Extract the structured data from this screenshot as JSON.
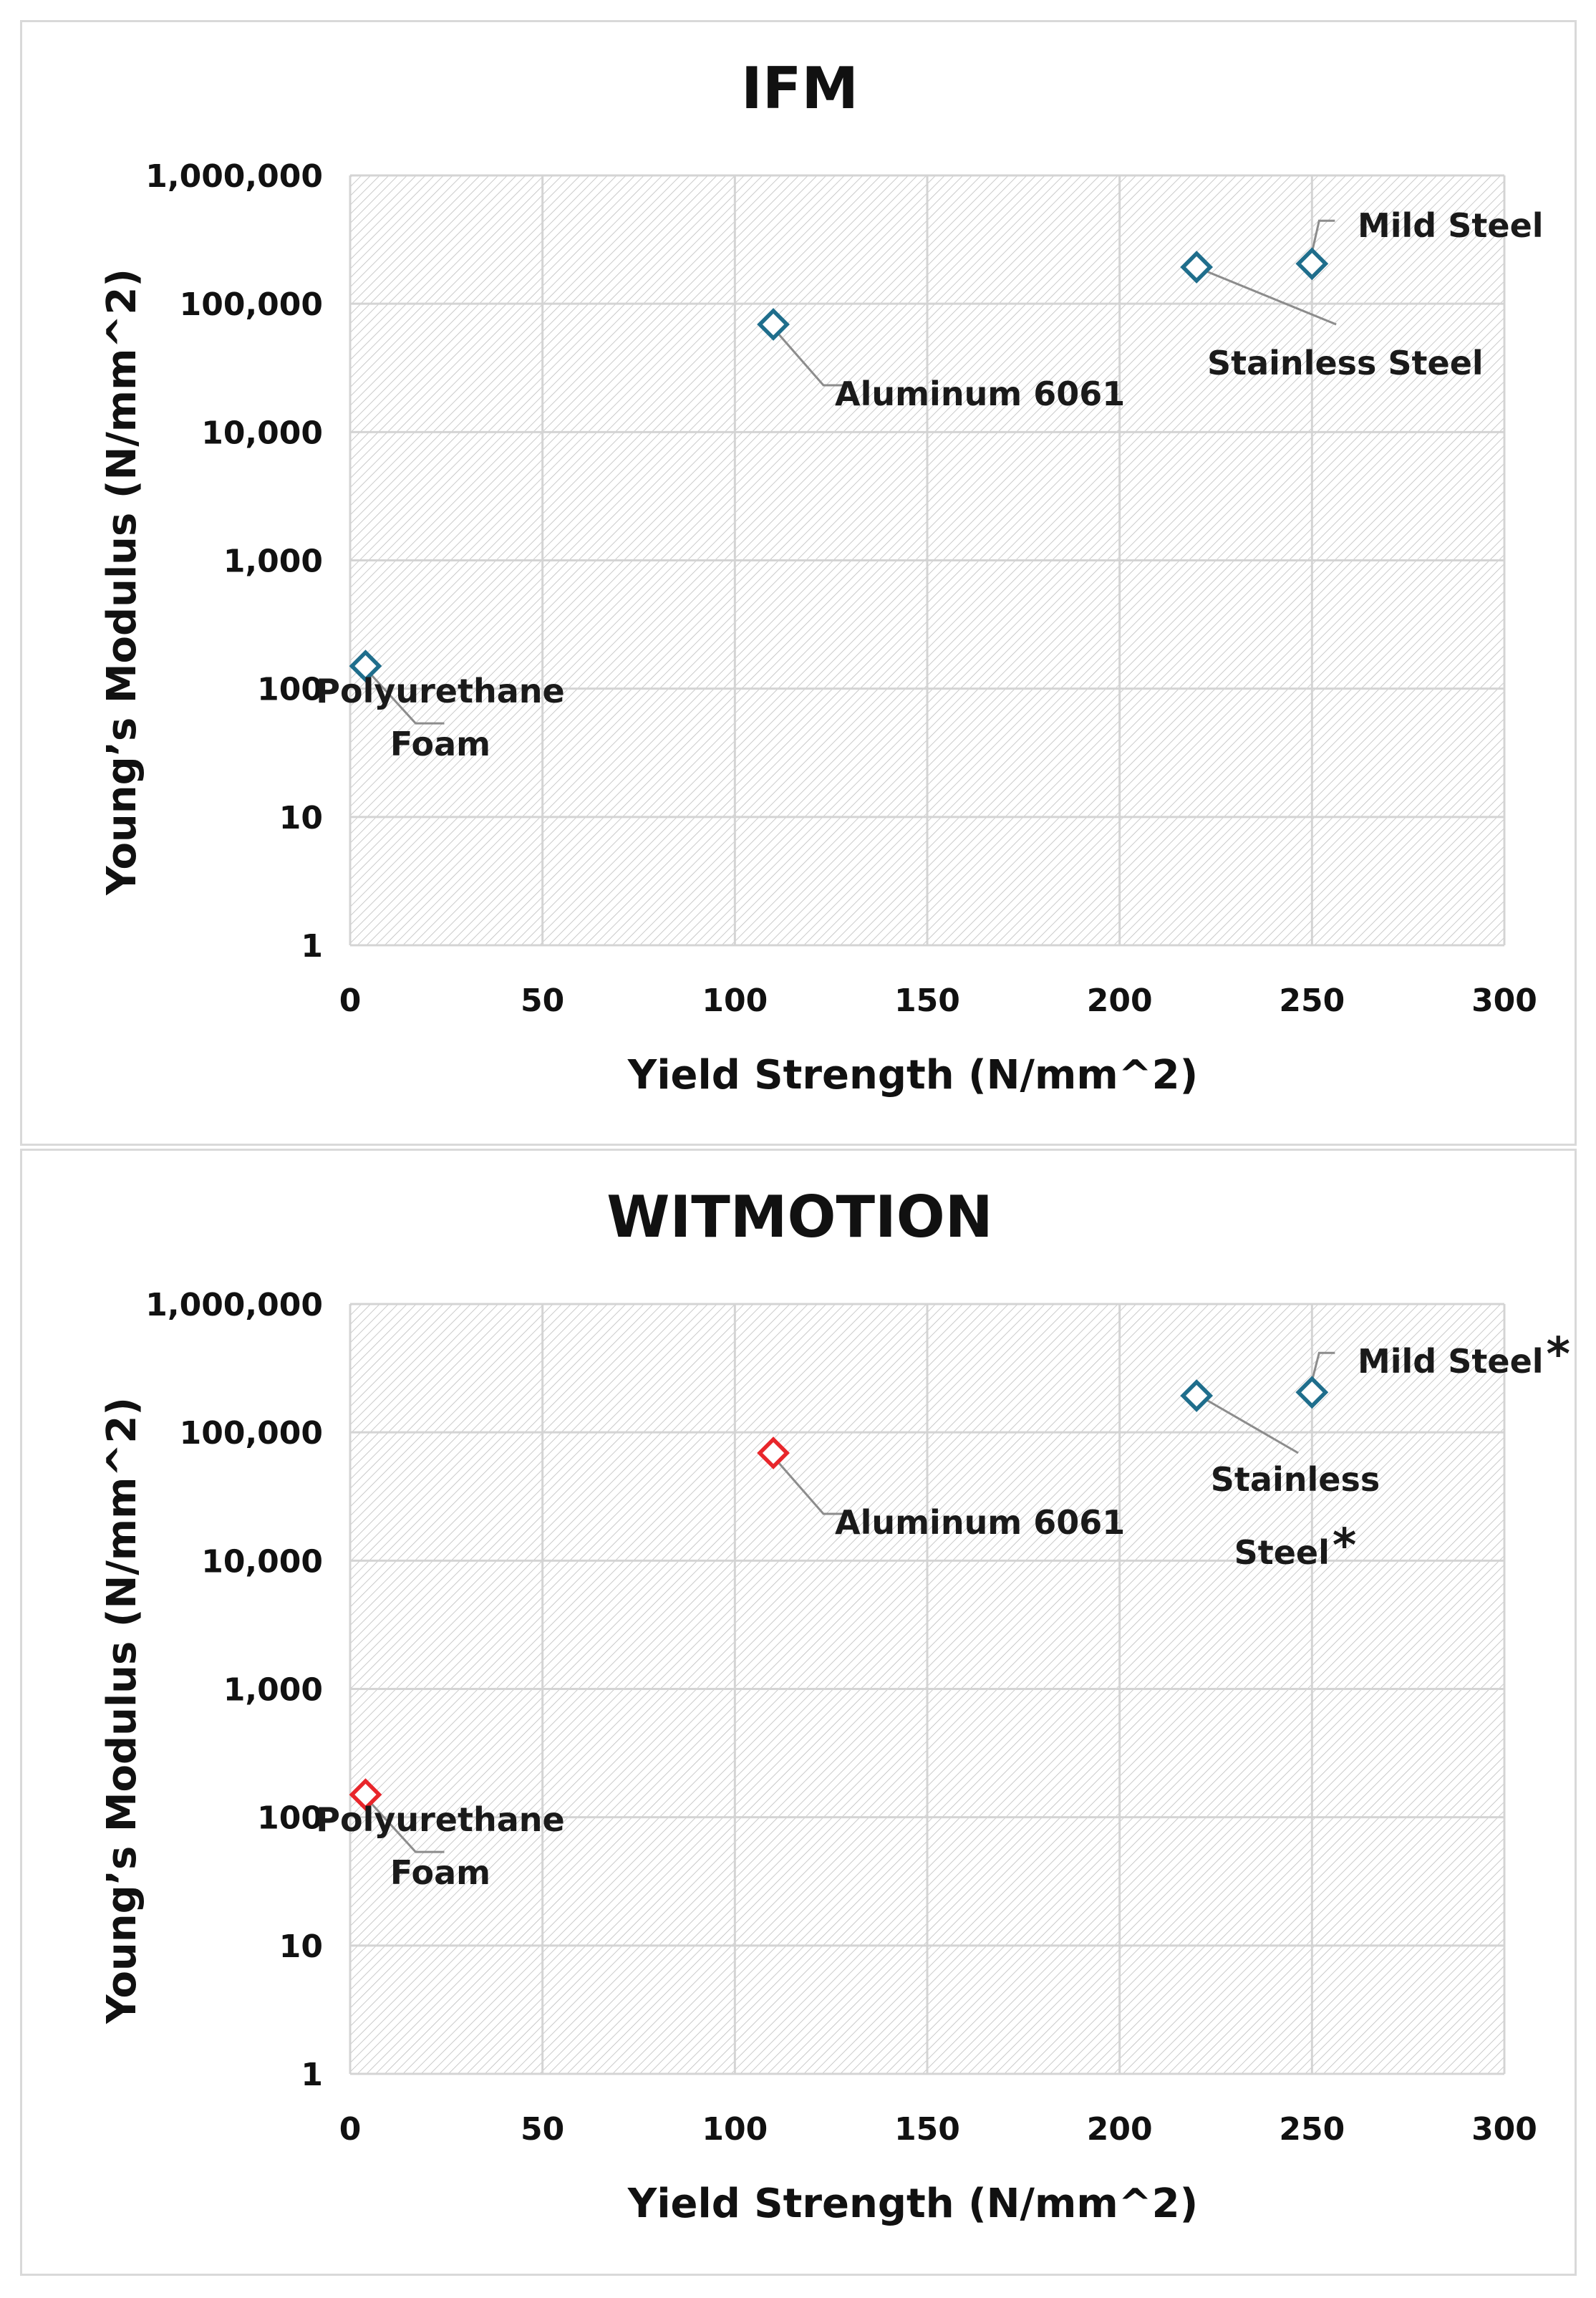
{
  "chart_data": [
    {
      "type": "scatter",
      "title": "IFM",
      "xlabel": "Yield Strength (N/mm^2)",
      "ylabel": "Young’s Modulus (N/mm^2)",
      "xlim": [
        0,
        300
      ],
      "ylim": [
        1,
        1000000
      ],
      "yscale": "log",
      "grid": true,
      "xticks": [
        "0",
        "50",
        "100",
        "150",
        "200",
        "250",
        "300"
      ],
      "yticks": [
        "1",
        "10",
        "100",
        "1,000",
        "10,000",
        "100,000",
        "1,000,000"
      ],
      "points": [
        {
          "name": "Polyurethane Foam",
          "label_lines": [
            "Polyurethane",
            "Foam"
          ],
          "x": 4,
          "y": 150,
          "color": "#1f6e8c"
        },
        {
          "name": "Aluminum 6061",
          "label_lines": [
            "Aluminum 6061"
          ],
          "x": 110,
          "y": 69000,
          "color": "#1f6e8c"
        },
        {
          "name": "Stainless Steel",
          "label_lines": [
            "Stainless Steel"
          ],
          "x": 220,
          "y": 193000,
          "color": "#1f6e8c"
        },
        {
          "name": "Mild Steel",
          "label_lines": [
            "Mild Steel"
          ],
          "x": 250,
          "y": 205000,
          "color": "#1f6e8c"
        }
      ]
    },
    {
      "type": "scatter",
      "title": "WITMOTION",
      "xlabel": "Yield Strength (N/mm^2)",
      "ylabel": "Young’s Modulus (N/mm^2)",
      "xlim": [
        0,
        300
      ],
      "ylim": [
        1,
        1000000
      ],
      "yscale": "log",
      "grid": true,
      "xticks": [
        "0",
        "50",
        "100",
        "150",
        "200",
        "250",
        "300"
      ],
      "yticks": [
        "1",
        "10",
        "100",
        "1,000",
        "10,000",
        "100,000",
        "1,000,000"
      ],
      "points": [
        {
          "name": "Polyurethane Foam",
          "label_lines": [
            "Polyurethane",
            "Foam"
          ],
          "x": 4,
          "y": 150,
          "color": "#e8262b"
        },
        {
          "name": "Aluminum 6061",
          "label_lines": [
            "Aluminum 6061"
          ],
          "x": 110,
          "y": 69000,
          "color": "#e8262b"
        },
        {
          "name": "Stainless Steel",
          "label_lines": [
            "Stainless",
            "Steel"
          ],
          "x": 220,
          "y": 193000,
          "color": "#1f6e8c",
          "marker_note": "*"
        },
        {
          "name": "Mild Steel",
          "label_lines": [
            "Mild Steel"
          ],
          "x": 250,
          "y": 205000,
          "color": "#1f6e8c",
          "marker_note": "*"
        }
      ]
    }
  ],
  "colors": {
    "grid": "#d4d4d4",
    "hatch": "#bdbdbd",
    "leader": "#8c8c8c",
    "text": "#111111"
  }
}
